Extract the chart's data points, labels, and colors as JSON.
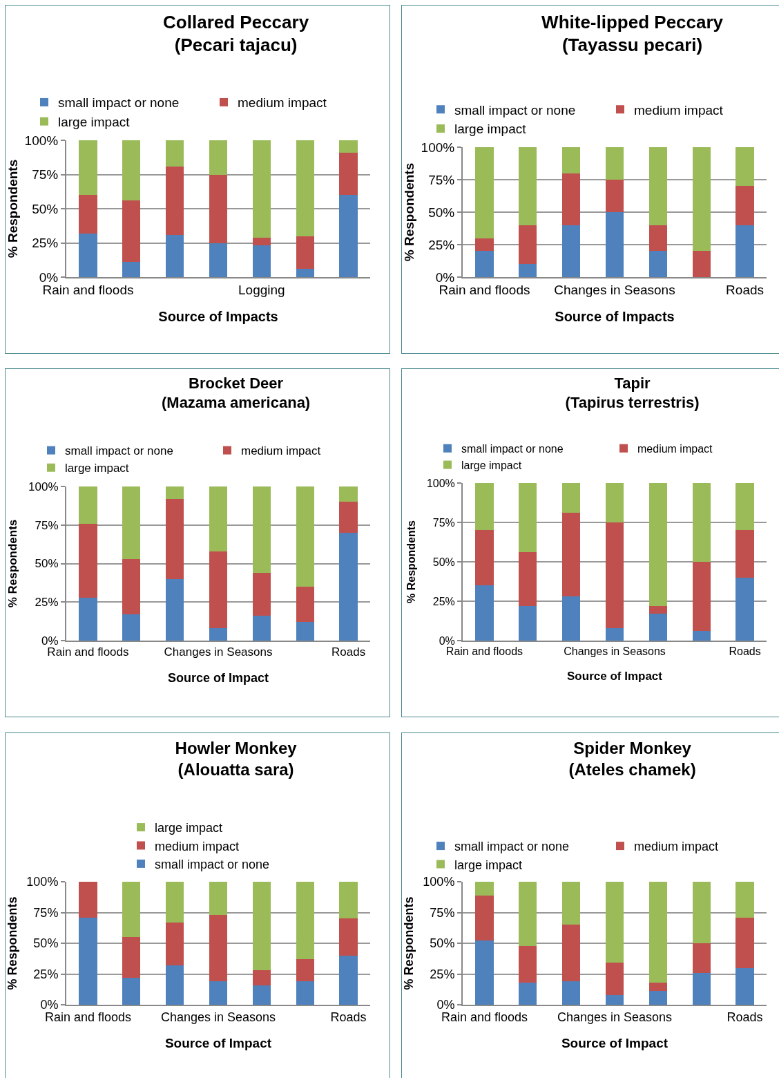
{
  "chart_data": [
    {
      "type": "bar",
      "stacked": true,
      "title": "Collared Peccary\n(Pecari tajacu)",
      "xlabel": "Source of Impacts",
      "ylabel": "% Respondents",
      "categories": [
        "Rain and floods",
        null,
        null,
        null,
        "Logging",
        null,
        null
      ],
      "ylim": [
        0,
        100
      ],
      "yticks": [
        {
          "value": 0,
          "label": "0%"
        },
        {
          "value": 25,
          "label": "25%"
        },
        {
          "value": 50,
          "label": "50%"
        },
        {
          "value": 75,
          "label": "75%"
        },
        {
          "value": 100,
          "label": "100%"
        }
      ],
      "grid": "y",
      "legend": "top",
      "series": [
        {
          "name": "small impact or none",
          "color": "#4f81bd",
          "values": [
            32,
            11,
            31,
            25,
            23,
            6,
            60
          ]
        },
        {
          "name": "medium impact",
          "color": "#c0504d",
          "values": [
            28,
            45,
            50,
            50,
            6,
            24,
            31
          ]
        },
        {
          "name": "large impact",
          "color": "#9bbb59",
          "values": [
            40,
            44,
            19,
            25,
            71,
            70,
            9
          ]
        }
      ]
    },
    {
      "type": "bar",
      "stacked": true,
      "title": "White-lipped Peccary\n(Tayassu pecari)",
      "xlabel": "Source of Impacts",
      "ylabel": "% Respondents",
      "categories": [
        "Rain and floods",
        null,
        null,
        "Changes in Seasons",
        null,
        null,
        "Roads"
      ],
      "ylim": [
        0,
        100
      ],
      "yticks": [
        {
          "value": 0,
          "label": "0%"
        },
        {
          "value": 25,
          "label": "25%"
        },
        {
          "value": 50,
          "label": "50%"
        },
        {
          "value": 75,
          "label": "75%"
        },
        {
          "value": 100,
          "label": "100%"
        }
      ],
      "grid": "y",
      "legend": "top",
      "series": [
        {
          "name": "small impact or none",
          "color": "#4f81bd",
          "values": [
            20,
            10,
            40,
            50,
            20,
            0,
            40
          ]
        },
        {
          "name": "medium impact",
          "color": "#c0504d",
          "values": [
            10,
            30,
            40,
            25,
            20,
            20,
            30
          ]
        },
        {
          "name": "large impact",
          "color": "#9bbb59",
          "values": [
            70,
            60,
            20,
            25,
            60,
            80,
            30
          ]
        }
      ]
    },
    {
      "type": "bar",
      "stacked": true,
      "title": "Brocket Deer\n(Mazama americana)",
      "xlabel": "Source of Impact",
      "ylabel": "% Respondents",
      "categories": [
        "Rain and floods",
        null,
        null,
        "Changes in Seasons",
        null,
        null,
        "Roads"
      ],
      "ylim": [
        0,
        100
      ],
      "yticks": [
        {
          "value": 0,
          "label": "0%"
        },
        {
          "value": 25,
          "label": "25%"
        },
        {
          "value": 50,
          "label": "50%"
        },
        {
          "value": 75,
          "label": "75%"
        },
        {
          "value": 100,
          "label": "100%"
        }
      ],
      "grid": "y",
      "legend": "top",
      "series": [
        {
          "name": "small impact or none",
          "color": "#4f81bd",
          "values": [
            28,
            17,
            40,
            8,
            16,
            12,
            70
          ]
        },
        {
          "name": "medium impact",
          "color": "#c0504d",
          "values": [
            48,
            36,
            52,
            50,
            28,
            23,
            20
          ]
        },
        {
          "name": "large impact",
          "color": "#9bbb59",
          "values": [
            24,
            47,
            8,
            42,
            56,
            65,
            10
          ]
        }
      ]
    },
    {
      "type": "bar",
      "stacked": true,
      "title": "Tapir\n(Tapirus terrestris)",
      "xlabel": "Source of Impact",
      "ylabel": "% Respondents",
      "categories": [
        "Rain and floods",
        null,
        null,
        "Changes in Seasons",
        null,
        null,
        "Roads"
      ],
      "ylim": [
        0,
        100
      ],
      "yticks": [
        {
          "value": 0,
          "label": "0%"
        },
        {
          "value": 25,
          "label": "25%"
        },
        {
          "value": 50,
          "label": "50%"
        },
        {
          "value": 75,
          "label": "75%"
        },
        {
          "value": 100,
          "label": "100%"
        }
      ],
      "grid": "y",
      "legend": "top",
      "series": [
        {
          "name": "small impact or none",
          "color": "#4f81bd",
          "values": [
            35,
            22,
            28,
            8,
            17,
            6,
            40
          ]
        },
        {
          "name": "medium impact",
          "color": "#c0504d",
          "values": [
            35,
            34,
            53,
            67,
            5,
            44,
            30
          ]
        },
        {
          "name": "large impact",
          "color": "#9bbb59",
          "values": [
            30,
            44,
            19,
            25,
            78,
            50,
            30
          ]
        }
      ]
    },
    {
      "type": "bar",
      "stacked": true,
      "title": "Howler Monkey\n(Alouatta sara)",
      "xlabel": "Source of Impact",
      "ylabel": "% Respondents",
      "categories": [
        "Rain and floods",
        null,
        null,
        "Changes in Seasons",
        null,
        null,
        "Roads"
      ],
      "ylim": [
        0,
        100
      ],
      "yticks": [
        {
          "value": 0,
          "label": "0%"
        },
        {
          "value": 25,
          "label": "25%"
        },
        {
          "value": 50,
          "label": "50%"
        },
        {
          "value": 75,
          "label": "75%"
        },
        {
          "value": 100,
          "label": "100%"
        }
      ],
      "grid": "y",
      "legend": "top",
      "series": [
        {
          "name": "small impact or none",
          "color": "#4f81bd",
          "values": [
            71,
            22,
            32,
            19,
            16,
            19,
            40
          ]
        },
        {
          "name": "medium impact",
          "color": "#c0504d",
          "values": [
            29,
            33,
            35,
            54,
            12,
            18,
            30
          ]
        },
        {
          "name": "large impact",
          "color": "#9bbb59",
          "values": [
            0,
            45,
            33,
            27,
            72,
            63,
            30
          ]
        }
      ]
    },
    {
      "type": "bar",
      "stacked": true,
      "title": "Spider Monkey\n(Ateles chamek)",
      "xlabel": "Source of Impact",
      "ylabel": "% Respondents",
      "categories": [
        "Rain and floods",
        null,
        null,
        "Changes in Seasons",
        null,
        null,
        "Roads"
      ],
      "ylim": [
        0,
        100
      ],
      "yticks": [
        {
          "value": 0,
          "label": "0%"
        },
        {
          "value": 25,
          "label": "25%"
        },
        {
          "value": 50,
          "label": "50%"
        },
        {
          "value": 75,
          "label": "75%"
        },
        {
          "value": 100,
          "label": "100%"
        }
      ],
      "grid": "y",
      "legend": "top",
      "series": [
        {
          "name": "small impact or none",
          "color": "#4f81bd",
          "values": [
            52,
            18,
            19,
            8,
            11,
            26,
            30
          ]
        },
        {
          "name": "medium impact",
          "color": "#c0504d",
          "values": [
            37,
            30,
            46,
            26,
            7,
            24,
            41
          ]
        },
        {
          "name": "large impact",
          "color": "#9bbb59",
          "values": [
            11,
            52,
            35,
            66,
            82,
            50,
            29
          ]
        }
      ]
    }
  ]
}
